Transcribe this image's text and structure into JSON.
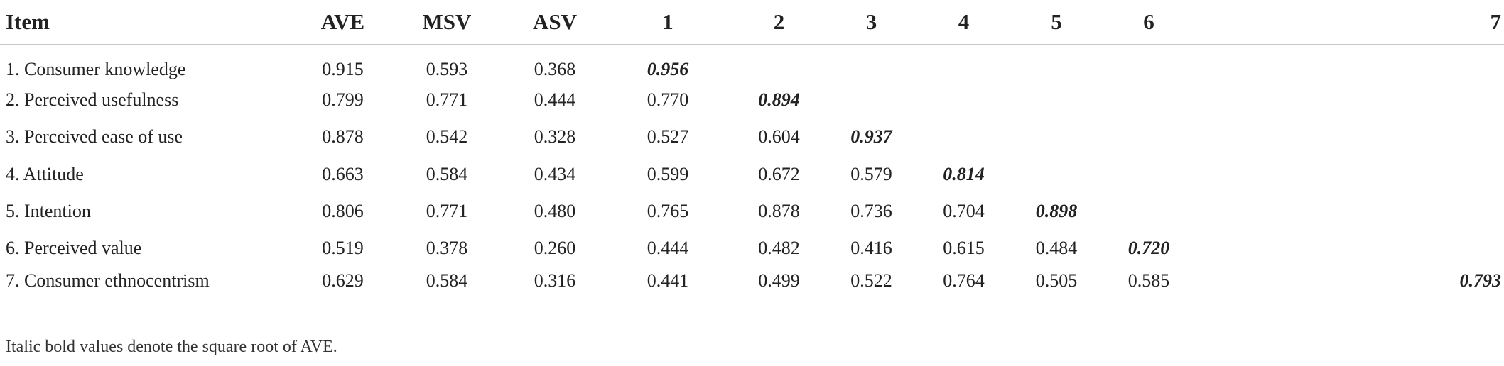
{
  "table": {
    "headers": [
      "Item",
      "AVE",
      "MSV",
      "ASV",
      "1",
      "2",
      "3",
      "4",
      "5",
      "6",
      "7"
    ],
    "rows": [
      [
        "1. Consumer knowledge",
        "0.915",
        "0.593",
        "0.368",
        "0.956",
        "",
        "",
        "",
        "",
        "",
        ""
      ],
      [
        "2. Perceived usefulness",
        "0.799",
        "0.771",
        "0.444",
        "0.770",
        "0.894",
        "",
        "",
        "",
        "",
        ""
      ],
      [
        "3. Perceived ease of use",
        "0.878",
        "0.542",
        "0.328",
        "0.527",
        "0.604",
        "0.937",
        "",
        "",
        "",
        ""
      ],
      [
        "4. Attitude",
        "0.663",
        "0.584",
        "0.434",
        "0.599",
        "0.672",
        "0.579",
        "0.814",
        "",
        "",
        ""
      ],
      [
        "5. Intention",
        "0.806",
        "0.771",
        "0.480",
        "0.765",
        "0.878",
        "0.736",
        "0.704",
        "0.898",
        "",
        ""
      ],
      [
        "6. Perceived value",
        "0.519",
        "0.378",
        "0.260",
        "0.444",
        "0.482",
        "0.416",
        "0.615",
        "0.484",
        "0.720",
        ""
      ],
      [
        "7. Consumer ethnocentrism",
        "0.629",
        "0.584",
        "0.316",
        "0.441",
        "0.499",
        "0.522",
        "0.764",
        "0.505",
        "0.585",
        "0.793"
      ]
    ]
  },
  "footnote": "Italic bold values denote the square root of AVE."
}
